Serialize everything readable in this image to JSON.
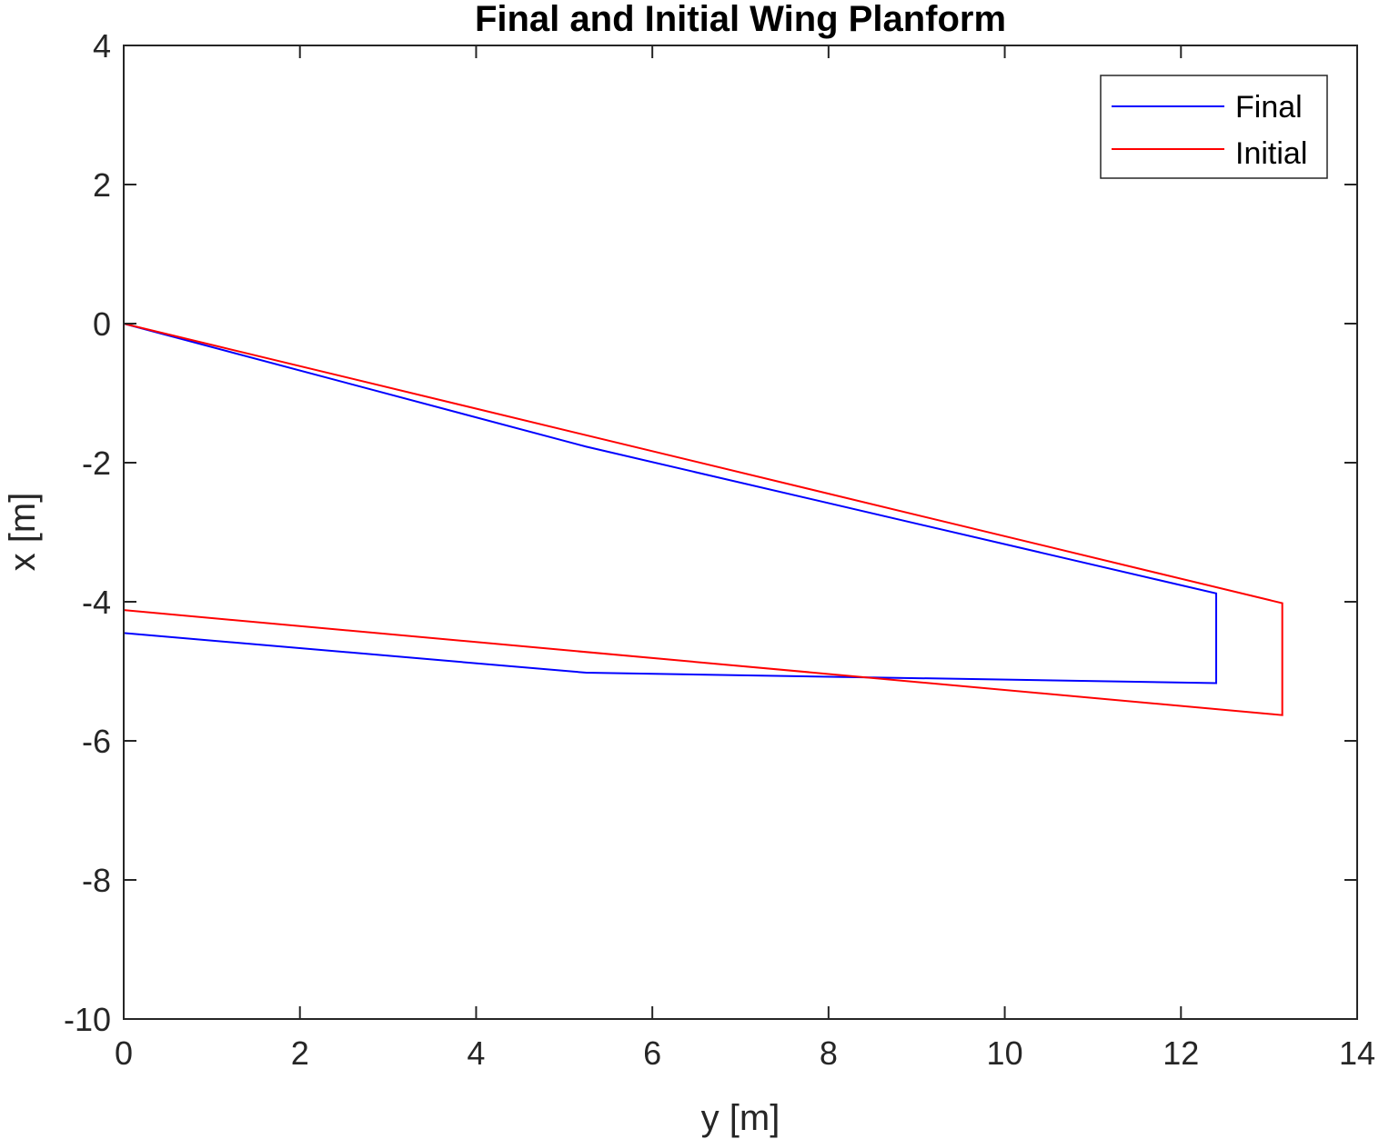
{
  "chart_data": {
    "type": "line",
    "title": "Final and Initial Wing Planform",
    "xlabel": "y [m]",
    "ylabel": "x [m]",
    "xlim": [
      0,
      14
    ],
    "ylim": [
      -10,
      4
    ],
    "xticks": [
      0,
      2,
      4,
      6,
      8,
      10,
      12,
      14
    ],
    "yticks": [
      -10,
      -8,
      -6,
      -4,
      -2,
      0,
      2,
      4
    ],
    "xtick_labels": [
      "0",
      "2",
      "4",
      "6",
      "8",
      "10",
      "12",
      "14"
    ],
    "ytick_labels": [
      "-10",
      "-8",
      "-6",
      "-4",
      "-2",
      "0",
      "2",
      "4"
    ],
    "grid": false,
    "legend": {
      "position": "top-right"
    },
    "series": [
      {
        "name": "Final",
        "color": "#0000ff",
        "x": [
          0,
          5.25,
          12.4,
          12.4,
          5.25,
          0
        ],
        "y": [
          0,
          -1.77,
          -3.88,
          -5.17,
          -5.02,
          -4.45
        ]
      },
      {
        "name": "Initial",
        "color": "#ff0000",
        "x": [
          0,
          13.15,
          13.15,
          0
        ],
        "y": [
          0,
          -4.02,
          -5.63,
          -4.12
        ]
      }
    ]
  }
}
